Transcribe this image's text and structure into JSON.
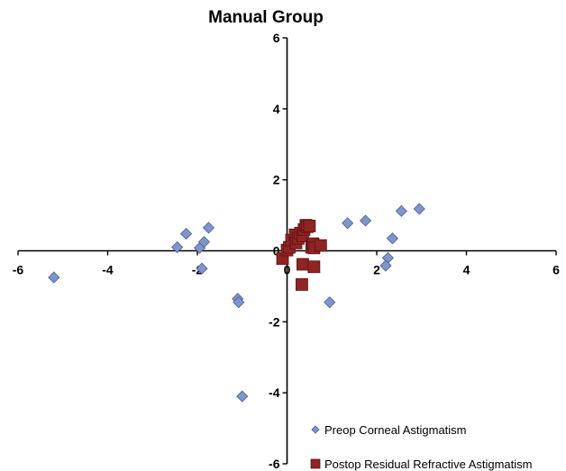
{
  "chart_data": {
    "type": "scatter",
    "title": "Manual Group",
    "xlim": [
      -6,
      6
    ],
    "ylim": [
      -6,
      6
    ],
    "x_ticks": [
      -6,
      -4,
      -2,
      0,
      2,
      4,
      6
    ],
    "y_ticks": [
      6,
      4,
      2,
      0,
      -2,
      -4,
      -6
    ],
    "grid": false,
    "legend_position": "bottom-right",
    "series": [
      {
        "name": "Preop Corneal Astigmatism",
        "marker": "diamond",
        "color": "#8095CC",
        "points": [
          [
            -5.2,
            -0.75
          ],
          [
            -2.45,
            0.1
          ],
          [
            -2.25,
            0.48
          ],
          [
            -1.95,
            0.08
          ],
          [
            -1.85,
            0.25
          ],
          [
            -1.75,
            0.65
          ],
          [
            -1.9,
            -0.5
          ],
          [
            -1.1,
            -1.35
          ],
          [
            -1.08,
            -1.45
          ],
          [
            -1.0,
            -4.1
          ],
          [
            0.95,
            -1.45
          ],
          [
            1.35,
            0.78
          ],
          [
            1.75,
            0.85
          ],
          [
            2.25,
            -0.2
          ],
          [
            2.2,
            -0.42
          ],
          [
            2.35,
            0.35
          ],
          [
            2.55,
            1.12
          ],
          [
            2.95,
            1.18
          ]
        ]
      },
      {
        "name": "Postop Residual Refractive Astigmatism",
        "marker": "square",
        "color": "#8E2424",
        "points": [
          [
            -0.1,
            -0.22
          ],
          [
            0.0,
            0.02
          ],
          [
            0.05,
            0.1
          ],
          [
            0.1,
            0.3
          ],
          [
            0.18,
            0.45
          ],
          [
            0.2,
            0.22
          ],
          [
            0.25,
            0.35
          ],
          [
            0.3,
            0.5
          ],
          [
            0.35,
            0.42
          ],
          [
            0.38,
            0.6
          ],
          [
            0.42,
            0.72
          ],
          [
            0.45,
            0.68
          ],
          [
            0.5,
            0.7
          ],
          [
            0.35,
            -0.38
          ],
          [
            0.33,
            -0.95
          ],
          [
            0.55,
            0.15
          ],
          [
            0.55,
            0.1
          ],
          [
            0.58,
            0.2
          ],
          [
            0.6,
            0.08
          ],
          [
            0.6,
            -0.45
          ],
          [
            0.75,
            0.15
          ]
        ]
      }
    ]
  }
}
